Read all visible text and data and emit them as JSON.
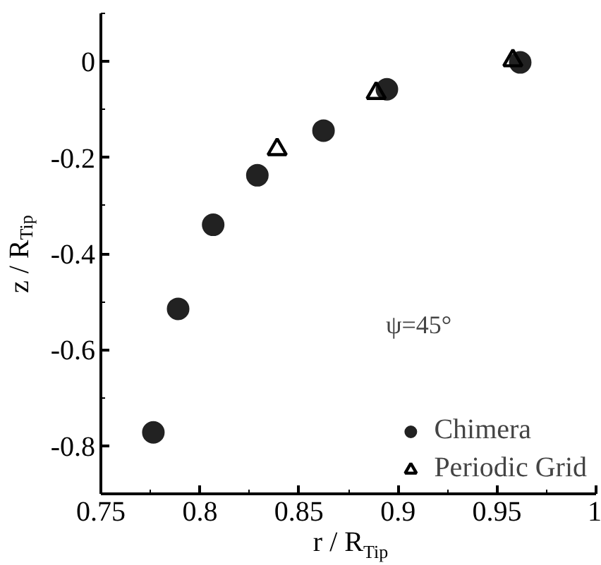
{
  "chart_data": {
    "type": "scatter",
    "xlabel": "r / R$_{Tip}$",
    "ylabel": "z / R$_{Tip}$",
    "annotations": [
      "ψ=45°"
    ],
    "xlim": [
      0.75,
      1
    ],
    "ylim": [
      -0.9,
      0.1
    ],
    "xticks": [
      0.75,
      {
        "value": 0.775,
        "label": null
      },
      0.8,
      {
        "value": 0.825,
        "label": null
      },
      0.85,
      {
        "value": 0.875,
        "label": null
      },
      0.9,
      {
        "value": 0.925,
        "label": null
      },
      0.95,
      {
        "value": 0.975,
        "label": null
      },
      1
    ],
    "yticks": [
      {
        "value": -0.9,
        "label": null
      },
      -0.8,
      {
        "value": -0.7,
        "label": null
      },
      -0.6,
      {
        "value": -0.5,
        "label": null
      },
      -0.4,
      {
        "value": -0.3,
        "label": null
      },
      -0.2,
      {
        "value": -0.1,
        "label": null
      },
      0,
      {
        "value": 0.1,
        "label": null
      }
    ],
    "grid": false,
    "legend": "bottom right",
    "series": [
      {
        "name": "Chimera",
        "color": "#222222",
        "marker": "circle",
        "x": [
          0.7765,
          0.789,
          0.8067,
          0.829,
          0.8624,
          0.8944,
          0.9617
        ],
        "values": [
          -0.772,
          -0.515,
          -0.34,
          -0.237,
          -0.144,
          -0.058,
          -0.002
        ]
      },
      {
        "name": "Periodic Grid",
        "color": "#000000",
        "marker": "triangle",
        "x": [
          0.839,
          0.889,
          0.958
        ],
        "values": [
          -0.183,
          -0.066,
          0.002
        ]
      }
    ]
  }
}
